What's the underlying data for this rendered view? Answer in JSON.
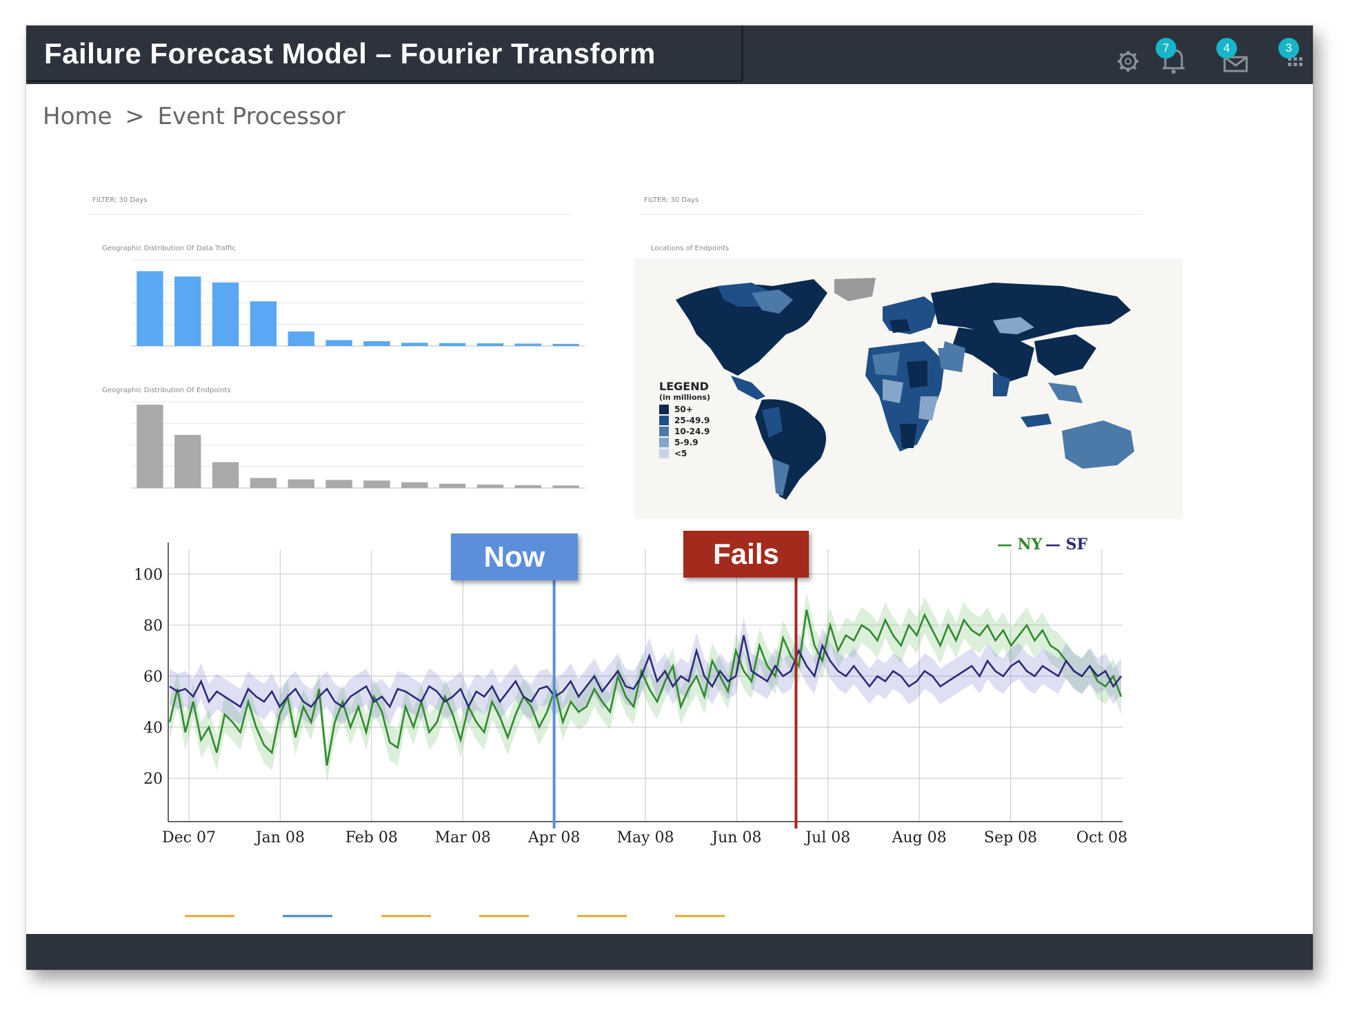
{
  "header": {
    "title": "Failure Forecast Model – Fourier Transform",
    "badges": {
      "notifications": "7",
      "messages": "4",
      "apps": "3"
    },
    "icons": [
      "gear-icon",
      "bell-icon",
      "mail-icon",
      "apps-icon"
    ]
  },
  "breadcrumb": {
    "home": "Home",
    "separator": ">",
    "current": "Event Processor"
  },
  "dashboard": {
    "panel_left_header": "FILTER:   30 Days",
    "panel_right_header": "FILTER:   30 Days",
    "traffic_chart_title": "Geographic Distribution Of Data Traffic",
    "endpoints_chart_title": "Geographic Distribution Of Endpoints",
    "map_title": "Locations of Endpoints"
  },
  "map_legend": {
    "title": "LEGEND",
    "subtitle": "(in millions)",
    "items": [
      {
        "label": "50+",
        "color": "#0b2a4f"
      },
      {
        "label": "25-49.9",
        "color": "#1f4f86"
      },
      {
        "label": "10-24.9",
        "color": "#4b79a8"
      },
      {
        "label": "5-9.9",
        "color": "#85a6c8"
      },
      {
        "label": "<5",
        "color": "#c6d6e8"
      }
    ]
  },
  "annotations": {
    "now_label": "Now",
    "fails_label": "Fails",
    "now_color": "#5b8fd9",
    "fails_color": "#a52a1e"
  },
  "chart_data": [
    {
      "type": "bar",
      "title": "Geographic Distribution Of Data Traffic",
      "values": [
        1390,
        1290,
        1180,
        830,
        270,
        110,
        90,
        60,
        55,
        50,
        45,
        40
      ],
      "ylim": [
        0,
        1600
      ],
      "color": "#5aa8f2"
    },
    {
      "type": "bar",
      "title": "Geographic Distribution Of Endpoints",
      "values": [
        290,
        185,
        90,
        35,
        30,
        28,
        26,
        20,
        15,
        12,
        10,
        9
      ],
      "ylim": [
        0,
        300
      ],
      "color": "#a9a9a9"
    },
    {
      "type": "line",
      "x_tick_labels": [
        "Dec 07",
        "Jan 08",
        "Feb 08",
        "Mar 08",
        "Apr 08",
        "May 08",
        "Jun 08",
        "Jul 08",
        "Aug 08",
        "Sep 08",
        "Oct 08"
      ],
      "y_ticks": [
        20,
        40,
        60,
        80,
        100
      ],
      "ylim": [
        3,
        107
      ],
      "grid": true,
      "legend_position": "top-right",
      "series": [
        {
          "name": "NY",
          "color": "#2f8a2b",
          "values": [
            42,
            55,
            38,
            50,
            35,
            40,
            30,
            45,
            42,
            38,
            50,
            40,
            33,
            30,
            45,
            52,
            36,
            48,
            42,
            55,
            25,
            42,
            50,
            40,
            48,
            38,
            52,
            46,
            34,
            32,
            48,
            40,
            50,
            38,
            42,
            52,
            45,
            35,
            48,
            42,
            38,
            50,
            44,
            36,
            45,
            52,
            48,
            40,
            46,
            55,
            42,
            50,
            46,
            48,
            55,
            50,
            46,
            60,
            52,
            48,
            62,
            55,
            50,
            58,
            64,
            48,
            55,
            60,
            52,
            66,
            60,
            54,
            70,
            62,
            58,
            72,
            64,
            60,
            75,
            68,
            64,
            86,
            72,
            66,
            80,
            70,
            76,
            74,
            80,
            78,
            74,
            82,
            76,
            72,
            80,
            76,
            84,
            78,
            72,
            80,
            74,
            82,
            78,
            76,
            80,
            74,
            78,
            72,
            76,
            80,
            74,
            78,
            72,
            70,
            66,
            62,
            60,
            64,
            58,
            56,
            60,
            52
          ]
        },
        {
          "name": "SF",
          "color": "#2b2a7a",
          "values": [
            56,
            54,
            55,
            52,
            58,
            50,
            54,
            52,
            50,
            48,
            55,
            52,
            50,
            54,
            48,
            52,
            55,
            50,
            48,
            52,
            55,
            50,
            48,
            52,
            54,
            56,
            50,
            52,
            48,
            55,
            54,
            52,
            50,
            56,
            54,
            50,
            52,
            55,
            48,
            54,
            52,
            56,
            50,
            54,
            58,
            52,
            50,
            55,
            56,
            52,
            54,
            58,
            52,
            56,
            60,
            54,
            58,
            62,
            56,
            55,
            60,
            68,
            58,
            62,
            56,
            60,
            58,
            70,
            60,
            56,
            62,
            58,
            60,
            76,
            62,
            60,
            58,
            64,
            60,
            62,
            70,
            64,
            60,
            72,
            66,
            62,
            60,
            64,
            60,
            56,
            60,
            58,
            62,
            60,
            56,
            58,
            62,
            60,
            56,
            58,
            60,
            62,
            64,
            60,
            66,
            62,
            60,
            64,
            66,
            62,
            60,
            64,
            62,
            60,
            66,
            62,
            60,
            64,
            60,
            62,
            56,
            60
          ]
        }
      ],
      "now_x": 4.0,
      "fails_x": 6.65
    }
  ]
}
